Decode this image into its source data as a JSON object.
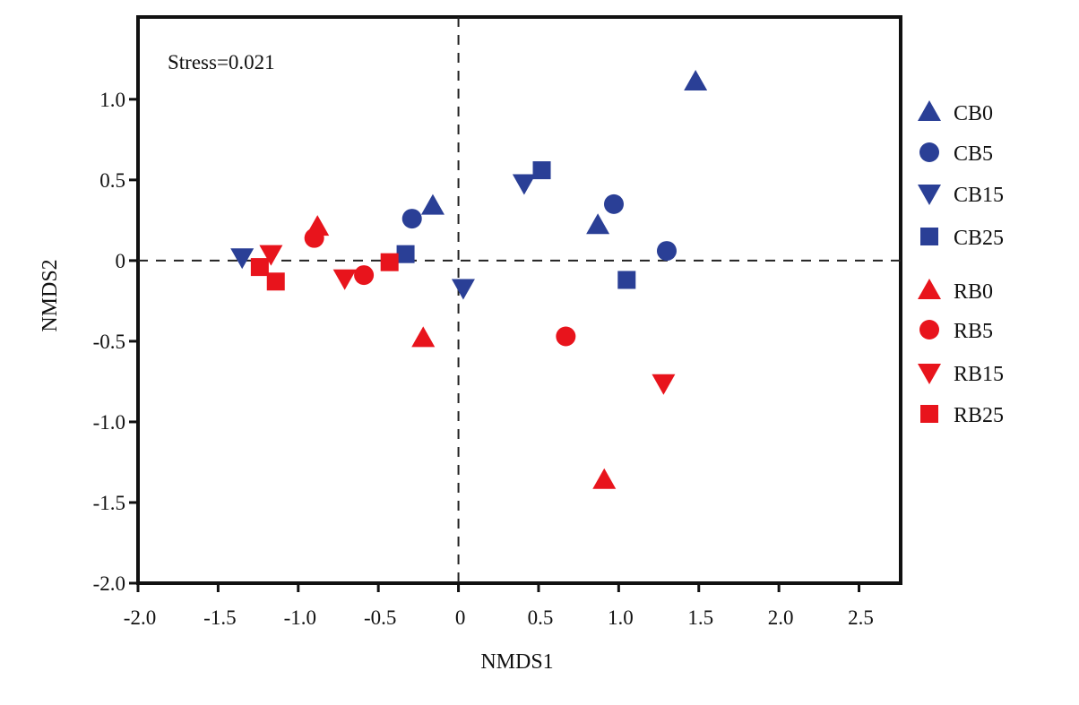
{
  "chart_data": {
    "type": "scatter",
    "title": "",
    "annotation": "Stress=0.021",
    "xlabel": "NMDS1",
    "ylabel": "NMDS2",
    "xlim": [
      -2.0,
      2.76
    ],
    "ylim": [
      -2.0,
      1.51
    ],
    "xticks": [
      -2.0,
      -1.5,
      -1.0,
      -0.5,
      0,
      0.5,
      1.0,
      1.5,
      2.0,
      2.5
    ],
    "xtick_labels": [
      "-2.0",
      "-1.5",
      "-1.0",
      "-0.5",
      "0",
      "0.5",
      "1.0",
      "1.5",
      "2.0",
      "2.5"
    ],
    "yticks": [
      -2.0,
      -1.5,
      -1.0,
      -0.5,
      0,
      0.5,
      1.0
    ],
    "ytick_labels": [
      "-2.0",
      "-1.5",
      "-1.0",
      "-0.5",
      "0",
      "0.5",
      "1.0"
    ],
    "reference_lines": {
      "x": 0,
      "y": 0,
      "style": "dashed"
    },
    "grid": false,
    "legend_position": "right",
    "series": [
      {
        "name": "CB0",
        "marker": "triangle-up",
        "color": "#2a3f96",
        "points": [
          [
            -0.16,
            0.34
          ],
          [
            0.87,
            0.22
          ],
          [
            1.48,
            1.11
          ]
        ]
      },
      {
        "name": "CB5",
        "marker": "circle",
        "color": "#2a3f96",
        "points": [
          [
            -0.29,
            0.26
          ],
          [
            0.97,
            0.35
          ],
          [
            1.3,
            0.06
          ]
        ]
      },
      {
        "name": "CB15",
        "marker": "triangle-down",
        "color": "#2a3f96",
        "points": [
          [
            -1.35,
            0.02
          ],
          [
            0.03,
            -0.17
          ],
          [
            0.41,
            0.48
          ]
        ]
      },
      {
        "name": "CB25",
        "marker": "square",
        "color": "#2a3f96",
        "points": [
          [
            -0.33,
            0.04
          ],
          [
            0.52,
            0.56
          ],
          [
            1.05,
            -0.12
          ]
        ]
      },
      {
        "name": "RB0",
        "marker": "triangle-up",
        "color": "#e8141c",
        "points": [
          [
            -0.88,
            0.21
          ],
          [
            -0.22,
            -0.48
          ],
          [
            0.91,
            -1.36
          ]
        ]
      },
      {
        "name": "RB5",
        "marker": "circle",
        "color": "#e8141c",
        "points": [
          [
            -0.9,
            0.14
          ],
          [
            -0.59,
            -0.09
          ],
          [
            0.67,
            -0.47
          ]
        ]
      },
      {
        "name": "RB15",
        "marker": "triangle-down",
        "color": "#e8141c",
        "points": [
          [
            -1.17,
            0.04
          ],
          [
            -0.71,
            -0.11
          ],
          [
            1.28,
            -0.76
          ]
        ]
      },
      {
        "name": "RB25",
        "marker": "square",
        "color": "#e8141c",
        "points": [
          [
            -1.24,
            -0.04
          ],
          [
            -1.14,
            -0.13
          ],
          [
            -0.43,
            -0.01
          ]
        ]
      }
    ]
  }
}
